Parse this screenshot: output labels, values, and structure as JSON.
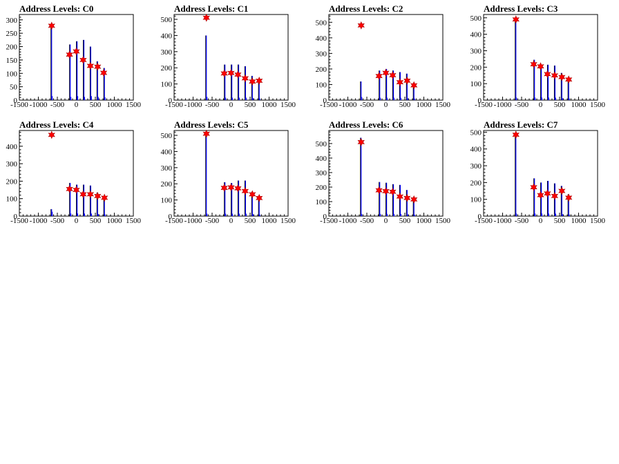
{
  "chart_data": [
    {
      "type": "histogram",
      "title": "Address Levels: C0",
      "xlim": [
        -1500,
        1500
      ],
      "ylim": [
        0,
        320
      ],
      "xticks": [
        -1500,
        -1000,
        -500,
        0,
        500,
        1000,
        1500
      ],
      "yticks": [
        0,
        50,
        100,
        150,
        200,
        250,
        300
      ],
      "spikes": [
        {
          "x": -650,
          "y": 275,
          "s": 15
        },
        {
          "x": -160,
          "y": 208,
          "s": 12
        },
        {
          "x": 20,
          "y": 220,
          "s": 15
        },
        {
          "x": 200,
          "y": 225,
          "s": 12
        },
        {
          "x": 380,
          "y": 200,
          "s": 15
        },
        {
          "x": 560,
          "y": 145,
          "s": 12
        },
        {
          "x": 740,
          "y": 120,
          "s": 10
        }
      ],
      "peaks": [
        {
          "x": -650,
          "y": 278
        },
        {
          "x": -180,
          "y": 170
        },
        {
          "x": 0,
          "y": 182
        },
        {
          "x": 180,
          "y": 150
        },
        {
          "x": 370,
          "y": 128
        },
        {
          "x": 560,
          "y": 125
        },
        {
          "x": 720,
          "y": 102
        }
      ]
    },
    {
      "type": "histogram",
      "title": "Address Levels: C1",
      "xlim": [
        -1500,
        1500
      ],
      "ylim": [
        0,
        530
      ],
      "xticks": [
        -1500,
        -1000,
        -500,
        0,
        500,
        1000,
        1500
      ],
      "yticks": [
        0,
        100,
        200,
        300,
        400,
        500
      ],
      "spikes": [
        {
          "x": -650,
          "y": 400,
          "s": 20
        },
        {
          "x": -160,
          "y": 220,
          "s": 15
        },
        {
          "x": 20,
          "y": 220,
          "s": 15
        },
        {
          "x": 200,
          "y": 220,
          "s": 15
        },
        {
          "x": 380,
          "y": 210,
          "s": 15
        },
        {
          "x": 560,
          "y": 150,
          "s": 12
        },
        {
          "x": 740,
          "y": 130,
          "s": 10
        }
      ],
      "peaks": [
        {
          "x": -650,
          "y": 510
        },
        {
          "x": -180,
          "y": 165
        },
        {
          "x": 0,
          "y": 168
        },
        {
          "x": 180,
          "y": 158
        },
        {
          "x": 370,
          "y": 135
        },
        {
          "x": 560,
          "y": 115
        },
        {
          "x": 740,
          "y": 120
        }
      ]
    },
    {
      "type": "histogram",
      "title": "Address Levels: C2",
      "xlim": [
        -1500,
        1500
      ],
      "ylim": [
        0,
        550
      ],
      "xticks": [
        -1500,
        -1000,
        -500,
        0,
        500,
        1000,
        1500
      ],
      "yticks": [
        0,
        100,
        200,
        300,
        400,
        500
      ],
      "spikes": [
        {
          "x": -650,
          "y": 120,
          "s": 20
        },
        {
          "x": -160,
          "y": 190,
          "s": 15
        },
        {
          "x": 20,
          "y": 200,
          "s": 15
        },
        {
          "x": 200,
          "y": 190,
          "s": 15
        },
        {
          "x": 380,
          "y": 180,
          "s": 15
        },
        {
          "x": 560,
          "y": 170,
          "s": 12
        },
        {
          "x": 740,
          "y": 110,
          "s": 10
        }
      ],
      "peaks": [
        {
          "x": -650,
          "y": 480
        },
        {
          "x": -180,
          "y": 155
        },
        {
          "x": 0,
          "y": 175
        },
        {
          "x": 180,
          "y": 160
        },
        {
          "x": 370,
          "y": 115
        },
        {
          "x": 560,
          "y": 125
        },
        {
          "x": 740,
          "y": 95
        }
      ]
    },
    {
      "type": "histogram",
      "title": "Address Levels: C3",
      "xlim": [
        -1500,
        1500
      ],
      "ylim": [
        0,
        520
      ],
      "xticks": [
        -1500,
        -1000,
        -500,
        0,
        500,
        1000,
        1500
      ],
      "yticks": [
        0,
        100,
        200,
        300,
        400,
        500
      ],
      "spikes": [
        {
          "x": -650,
          "y": 490,
          "s": 15
        },
        {
          "x": -160,
          "y": 245,
          "s": 15
        },
        {
          "x": 20,
          "y": 215,
          "s": 15
        },
        {
          "x": 200,
          "y": 215,
          "s": 15
        },
        {
          "x": 380,
          "y": 210,
          "s": 15
        },
        {
          "x": 560,
          "y": 165,
          "s": 12
        },
        {
          "x": 740,
          "y": 130,
          "s": 10
        }
      ],
      "peaks": [
        {
          "x": -650,
          "y": 490
        },
        {
          "x": -180,
          "y": 218
        },
        {
          "x": 0,
          "y": 205
        },
        {
          "x": 180,
          "y": 158
        },
        {
          "x": 370,
          "y": 150
        },
        {
          "x": 560,
          "y": 140
        },
        {
          "x": 740,
          "y": 125
        }
      ]
    },
    {
      "type": "histogram",
      "title": "Address Levels: C4",
      "xlim": [
        -1500,
        1500
      ],
      "ylim": [
        0,
        490
      ],
      "xticks": [
        -1500,
        -1000,
        -500,
        0,
        500,
        1000,
        1500
      ],
      "yticks": [
        0,
        100,
        200,
        300,
        400
      ],
      "spikes": [
        {
          "x": -650,
          "y": 40,
          "s": 25
        },
        {
          "x": -160,
          "y": 190,
          "s": 15
        },
        {
          "x": 20,
          "y": 180,
          "s": 15
        },
        {
          "x": 200,
          "y": 180,
          "s": 15
        },
        {
          "x": 380,
          "y": 175,
          "s": 15
        },
        {
          "x": 560,
          "y": 135,
          "s": 12
        },
        {
          "x": 740,
          "y": 110,
          "s": 10
        }
      ],
      "peaks": [
        {
          "x": -650,
          "y": 465
        },
        {
          "x": -180,
          "y": 155
        },
        {
          "x": 0,
          "y": 150
        },
        {
          "x": 180,
          "y": 125
        },
        {
          "x": 370,
          "y": 125
        },
        {
          "x": 560,
          "y": 115
        },
        {
          "x": 740,
          "y": 105
        }
      ]
    },
    {
      "type": "histogram",
      "title": "Address Levels: C5",
      "xlim": [
        -1500,
        1500
      ],
      "ylim": [
        0,
        530
      ],
      "xticks": [
        -1500,
        -1000,
        -500,
        0,
        500,
        1000,
        1500
      ],
      "yticks": [
        0,
        100,
        200,
        300,
        400,
        500
      ],
      "spikes": [
        {
          "x": -650,
          "y": 500,
          "s": 15
        },
        {
          "x": -160,
          "y": 210,
          "s": 15
        },
        {
          "x": 20,
          "y": 205,
          "s": 15
        },
        {
          "x": 200,
          "y": 220,
          "s": 15
        },
        {
          "x": 380,
          "y": 220,
          "s": 15
        },
        {
          "x": 560,
          "y": 150,
          "s": 12
        },
        {
          "x": 740,
          "y": 120,
          "s": 10
        }
      ],
      "peaks": [
        {
          "x": -650,
          "y": 510
        },
        {
          "x": -180,
          "y": 175
        },
        {
          "x": 0,
          "y": 178
        },
        {
          "x": 180,
          "y": 172
        },
        {
          "x": 370,
          "y": 155
        },
        {
          "x": 560,
          "y": 135
        },
        {
          "x": 740,
          "y": 112
        }
      ]
    },
    {
      "type": "histogram",
      "title": "Address Levels: C6",
      "xlim": [
        -1500,
        1500
      ],
      "ylim": [
        0,
        590
      ],
      "xticks": [
        -1500,
        -1000,
        -500,
        0,
        500,
        1000,
        1500
      ],
      "yticks": [
        0,
        100,
        200,
        300,
        400,
        500
      ],
      "spikes": [
        {
          "x": -650,
          "y": 540,
          "s": 15
        },
        {
          "x": -160,
          "y": 235,
          "s": 15
        },
        {
          "x": 20,
          "y": 230,
          "s": 15
        },
        {
          "x": 200,
          "y": 220,
          "s": 15
        },
        {
          "x": 380,
          "y": 215,
          "s": 15
        },
        {
          "x": 560,
          "y": 180,
          "s": 12
        },
        {
          "x": 740,
          "y": 130,
          "s": 10
        }
      ],
      "peaks": [
        {
          "x": -650,
          "y": 510
        },
        {
          "x": -180,
          "y": 178
        },
        {
          "x": 0,
          "y": 172
        },
        {
          "x": 180,
          "y": 168
        },
        {
          "x": 370,
          "y": 135
        },
        {
          "x": 560,
          "y": 125
        },
        {
          "x": 740,
          "y": 115
        }
      ]
    },
    {
      "type": "histogram",
      "title": "Address Levels: C7",
      "xlim": [
        -1500,
        1500
      ],
      "ylim": [
        0,
        510
      ],
      "xticks": [
        -1500,
        -1000,
        -500,
        0,
        500,
        1000,
        1500
      ],
      "yticks": [
        0,
        100,
        200,
        300,
        400,
        500
      ],
      "spikes": [
        {
          "x": -650,
          "y": 490,
          "s": 15
        },
        {
          "x": -160,
          "y": 225,
          "s": 15
        },
        {
          "x": 20,
          "y": 200,
          "s": 15
        },
        {
          "x": 200,
          "y": 210,
          "s": 15
        },
        {
          "x": 380,
          "y": 195,
          "s": 15
        },
        {
          "x": 560,
          "y": 180,
          "s": 12
        },
        {
          "x": 740,
          "y": 130,
          "s": 10
        }
      ],
      "peaks": [
        {
          "x": -650,
          "y": 485
        },
        {
          "x": -180,
          "y": 172
        },
        {
          "x": 0,
          "y": 125
        },
        {
          "x": 180,
          "y": 135
        },
        {
          "x": 370,
          "y": 120
        },
        {
          "x": 560,
          "y": 150
        },
        {
          "x": 740,
          "y": 110
        }
      ]
    }
  ],
  "colors": {
    "histogram": "#0000ff",
    "histogram_inner": "#000000",
    "marker_fill": "#ff0000",
    "marker_stroke": "#aa0000",
    "axes": "#000000"
  }
}
